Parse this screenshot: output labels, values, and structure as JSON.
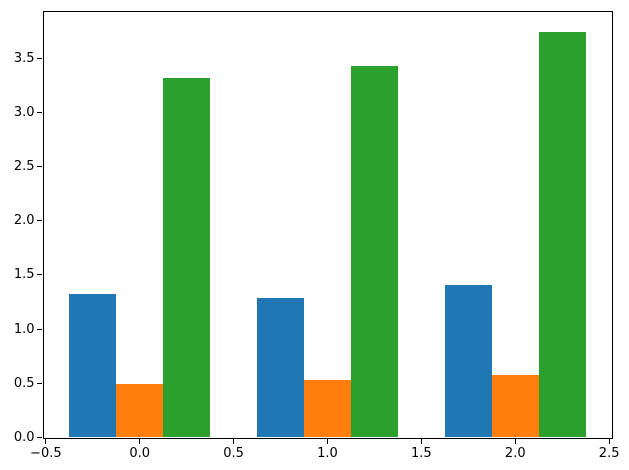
{
  "chart_data": {
    "type": "bar",
    "title": "",
    "xlabel": "",
    "ylabel": "",
    "grid": false,
    "legend": null,
    "x_groups": [
      0.0,
      1.0,
      2.0
    ],
    "bar_width": 0.25,
    "series": [
      {
        "name": "blue",
        "color": "#1f77b4",
        "offset": -0.25,
        "values": [
          1.32,
          1.29,
          1.41
        ]
      },
      {
        "name": "orange",
        "color": "#ff7f0e",
        "offset": 0.0,
        "values": [
          0.49,
          0.53,
          0.58
        ]
      },
      {
        "name": "green",
        "color": "#2ca02c",
        "offset": 0.25,
        "values": [
          3.32,
          3.43,
          3.74
        ]
      }
    ],
    "xlim": [
      -0.5125,
      2.5125
    ],
    "ylim": [
      0,
      3.93
    ],
    "x_tick_values": [
      -0.5,
      0.0,
      0.5,
      1.0,
      1.5,
      2.0,
      2.5
    ],
    "x_tick_labels": [
      "−0.5",
      "0.0",
      "0.5",
      "1.0",
      "1.5",
      "2.0",
      "2.5"
    ],
    "y_tick_values": [
      0.0,
      0.5,
      1.0,
      1.5,
      2.0,
      2.5,
      3.0,
      3.5
    ],
    "y_tick_labels": [
      "0.0",
      "0.5",
      "1.0",
      "1.5",
      "2.0",
      "2.5",
      "3.0",
      "3.5"
    ],
    "spine_color": "#000000",
    "background_color": "#ffffff"
  }
}
